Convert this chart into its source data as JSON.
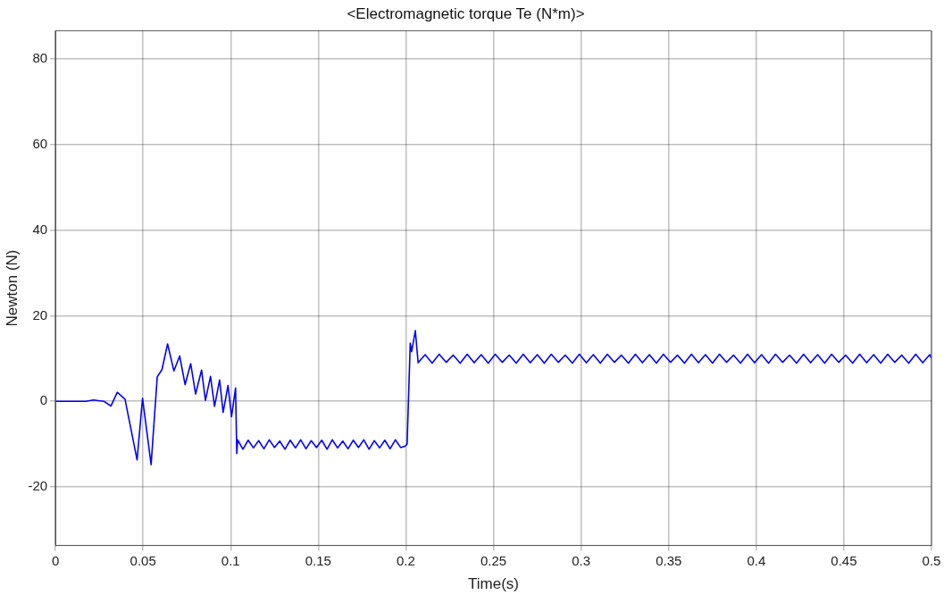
{
  "chart_data": {
    "type": "line",
    "title": "<Electromagnetic torque Te (N*m)>",
    "xlabel": "Time(s)",
    "ylabel": "Newton (N)",
    "x": [
      0,
      0.0173,
      0.0217,
      0.0276,
      0.0317,
      0.0353,
      0.0397,
      0.0466,
      0.0497,
      0.0546,
      0.0581,
      0.0608,
      0.064,
      0.0676,
      0.0709,
      0.074,
      0.0772,
      0.08,
      0.0834,
      0.0856,
      0.0885,
      0.0908,
      0.0937,
      0.0957,
      0.0985,
      0.1005,
      0.1028,
      0.1035,
      0.104,
      0.107,
      0.11,
      0.113,
      0.116,
      0.119,
      0.122,
      0.125,
      0.128,
      0.131,
      0.134,
      0.137,
      0.14,
      0.143,
      0.146,
      0.149,
      0.152,
      0.155,
      0.158,
      0.161,
      0.164,
      0.167,
      0.17,
      0.173,
      0.176,
      0.179,
      0.182,
      0.185,
      0.188,
      0.191,
      0.194,
      0.197,
      0.1995,
      0.2007,
      0.2025,
      0.2033,
      0.2054,
      0.207,
      0.211,
      0.215,
      0.219,
      0.223,
      0.227,
      0.231,
      0.235,
      0.239,
      0.243,
      0.247,
      0.251,
      0.255,
      0.259,
      0.263,
      0.267,
      0.271,
      0.275,
      0.279,
      0.283,
      0.287,
      0.291,
      0.295,
      0.299,
      0.303,
      0.307,
      0.311,
      0.315,
      0.319,
      0.323,
      0.327,
      0.331,
      0.335,
      0.339,
      0.343,
      0.347,
      0.351,
      0.355,
      0.359,
      0.363,
      0.367,
      0.371,
      0.375,
      0.379,
      0.383,
      0.387,
      0.391,
      0.395,
      0.399,
      0.403,
      0.407,
      0.411,
      0.415,
      0.419,
      0.423,
      0.427,
      0.431,
      0.435,
      0.439,
      0.443,
      0.447,
      0.451,
      0.455,
      0.459,
      0.463,
      0.467,
      0.471,
      0.475,
      0.479,
      0.483,
      0.487,
      0.491,
      0.495,
      0.499,
      0.5
    ],
    "values": [
      0,
      0,
      0.3,
      0,
      -1.1,
      2.1,
      0.5,
      -13.7,
      0.7,
      -14.8,
      5.7,
      7.4,
      13.4,
      7.1,
      10.6,
      3.9,
      8.8,
      1.7,
      7.3,
      0.2,
      5.8,
      -1.2,
      5,
      -2.6,
      3.7,
      -3.6,
      3.1,
      -12.2,
      -9,
      -11.2,
      -9.1,
      -10.9,
      -9.2,
      -11.1,
      -9,
      -10.8,
      -9.3,
      -11.2,
      -9.1,
      -10.9,
      -9,
      -11.1,
      -9.2,
      -10.8,
      -9.1,
      -11.2,
      -9,
      -10.9,
      -9.3,
      -11.1,
      -9.1,
      -10.8,
      -9,
      -11.2,
      -9.2,
      -10.9,
      -9.1,
      -11.1,
      -9,
      -10.8,
      -10.5,
      -10,
      13.6,
      11.6,
      16.5,
      9,
      10.9,
      8.9,
      11,
      9.1,
      10.8,
      8.9,
      11,
      9,
      10.9,
      8.9,
      11,
      9.1,
      10.8,
      8.9,
      11,
      9,
      10.9,
      8.9,
      11,
      9.1,
      10.8,
      8.9,
      11,
      9,
      10.9,
      8.9,
      11,
      9.1,
      10.8,
      8.9,
      11,
      9,
      10.9,
      8.9,
      11,
      9.1,
      10.8,
      8.9,
      11,
      9,
      10.9,
      8.9,
      11,
      9.1,
      10.8,
      8.9,
      11,
      9,
      10.9,
      8.9,
      11,
      9.1,
      10.8,
      8.9,
      11,
      9,
      10.9,
      8.9,
      11,
      9.1,
      10.8,
      8.9,
      11,
      9,
      10.9,
      8.9,
      11,
      9.1,
      10.8,
      8.9,
      11,
      9,
      10.9,
      10
    ],
    "color": "#0000ff",
    "xlim": [
      0,
      0.5
    ],
    "ylim": [
      -33.7,
      86.6
    ],
    "xticks": [
      0,
      0.05,
      0.1,
      0.15,
      0.2,
      0.25,
      0.3,
      0.35,
      0.4,
      0.45,
      0.5
    ],
    "yticks": [
      -20,
      0,
      20,
      40,
      60,
      80
    ],
    "grid": true
  }
}
